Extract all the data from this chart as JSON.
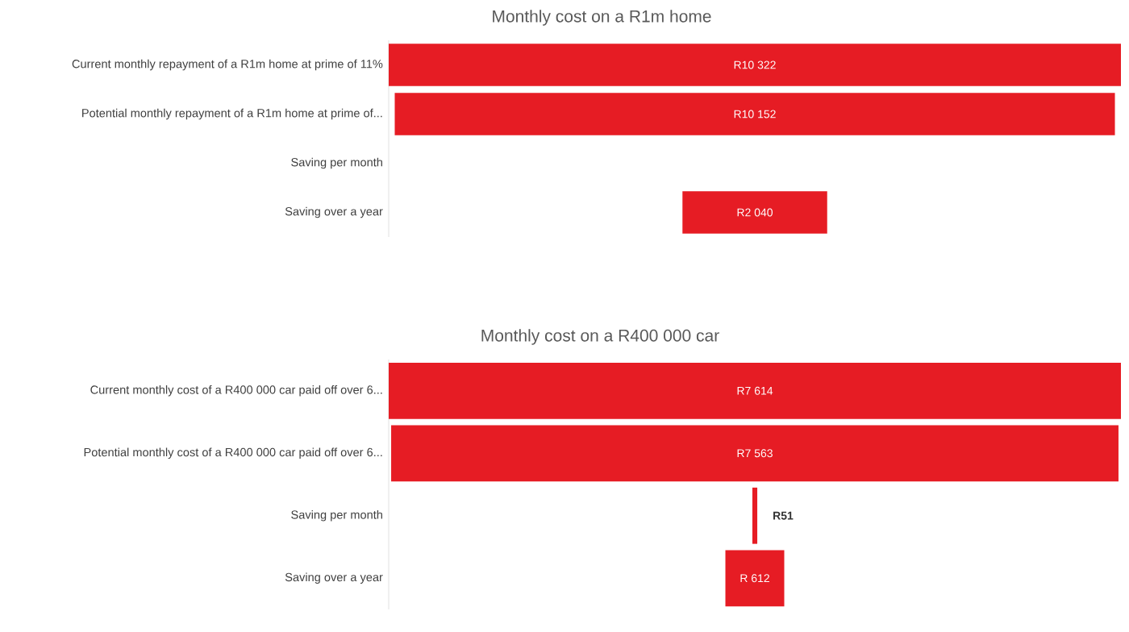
{
  "chart_data": [
    {
      "type": "other",
      "title": "Monthly cost on a R1m home",
      "color": "#e61c24",
      "categories": [
        "Current monthly repayment of a R1m home at prime of 11%",
        "Potential monthly repayment of a R1m home at prime of...",
        "Saving per month",
        "Saving over a year"
      ],
      "values": [
        10322,
        10152,
        null,
        2040
      ],
      "value_labels": [
        "R10 322",
        "R10 152",
        null,
        "R2 040"
      ]
    },
    {
      "type": "other",
      "title": "Monthly cost on a R400 000 car",
      "color": "#e61c24",
      "categories": [
        "Current monthly cost of a R400 000 car paid off over 6...",
        "Potential monthly cost of a R400 000 car paid off over 6...",
        "Saving per month",
        "Saving over a year"
      ],
      "values": [
        7614,
        7563,
        51,
        612
      ],
      "value_labels": [
        "R7 614",
        "R7 563",
        "R51",
        "R 612"
      ]
    }
  ]
}
